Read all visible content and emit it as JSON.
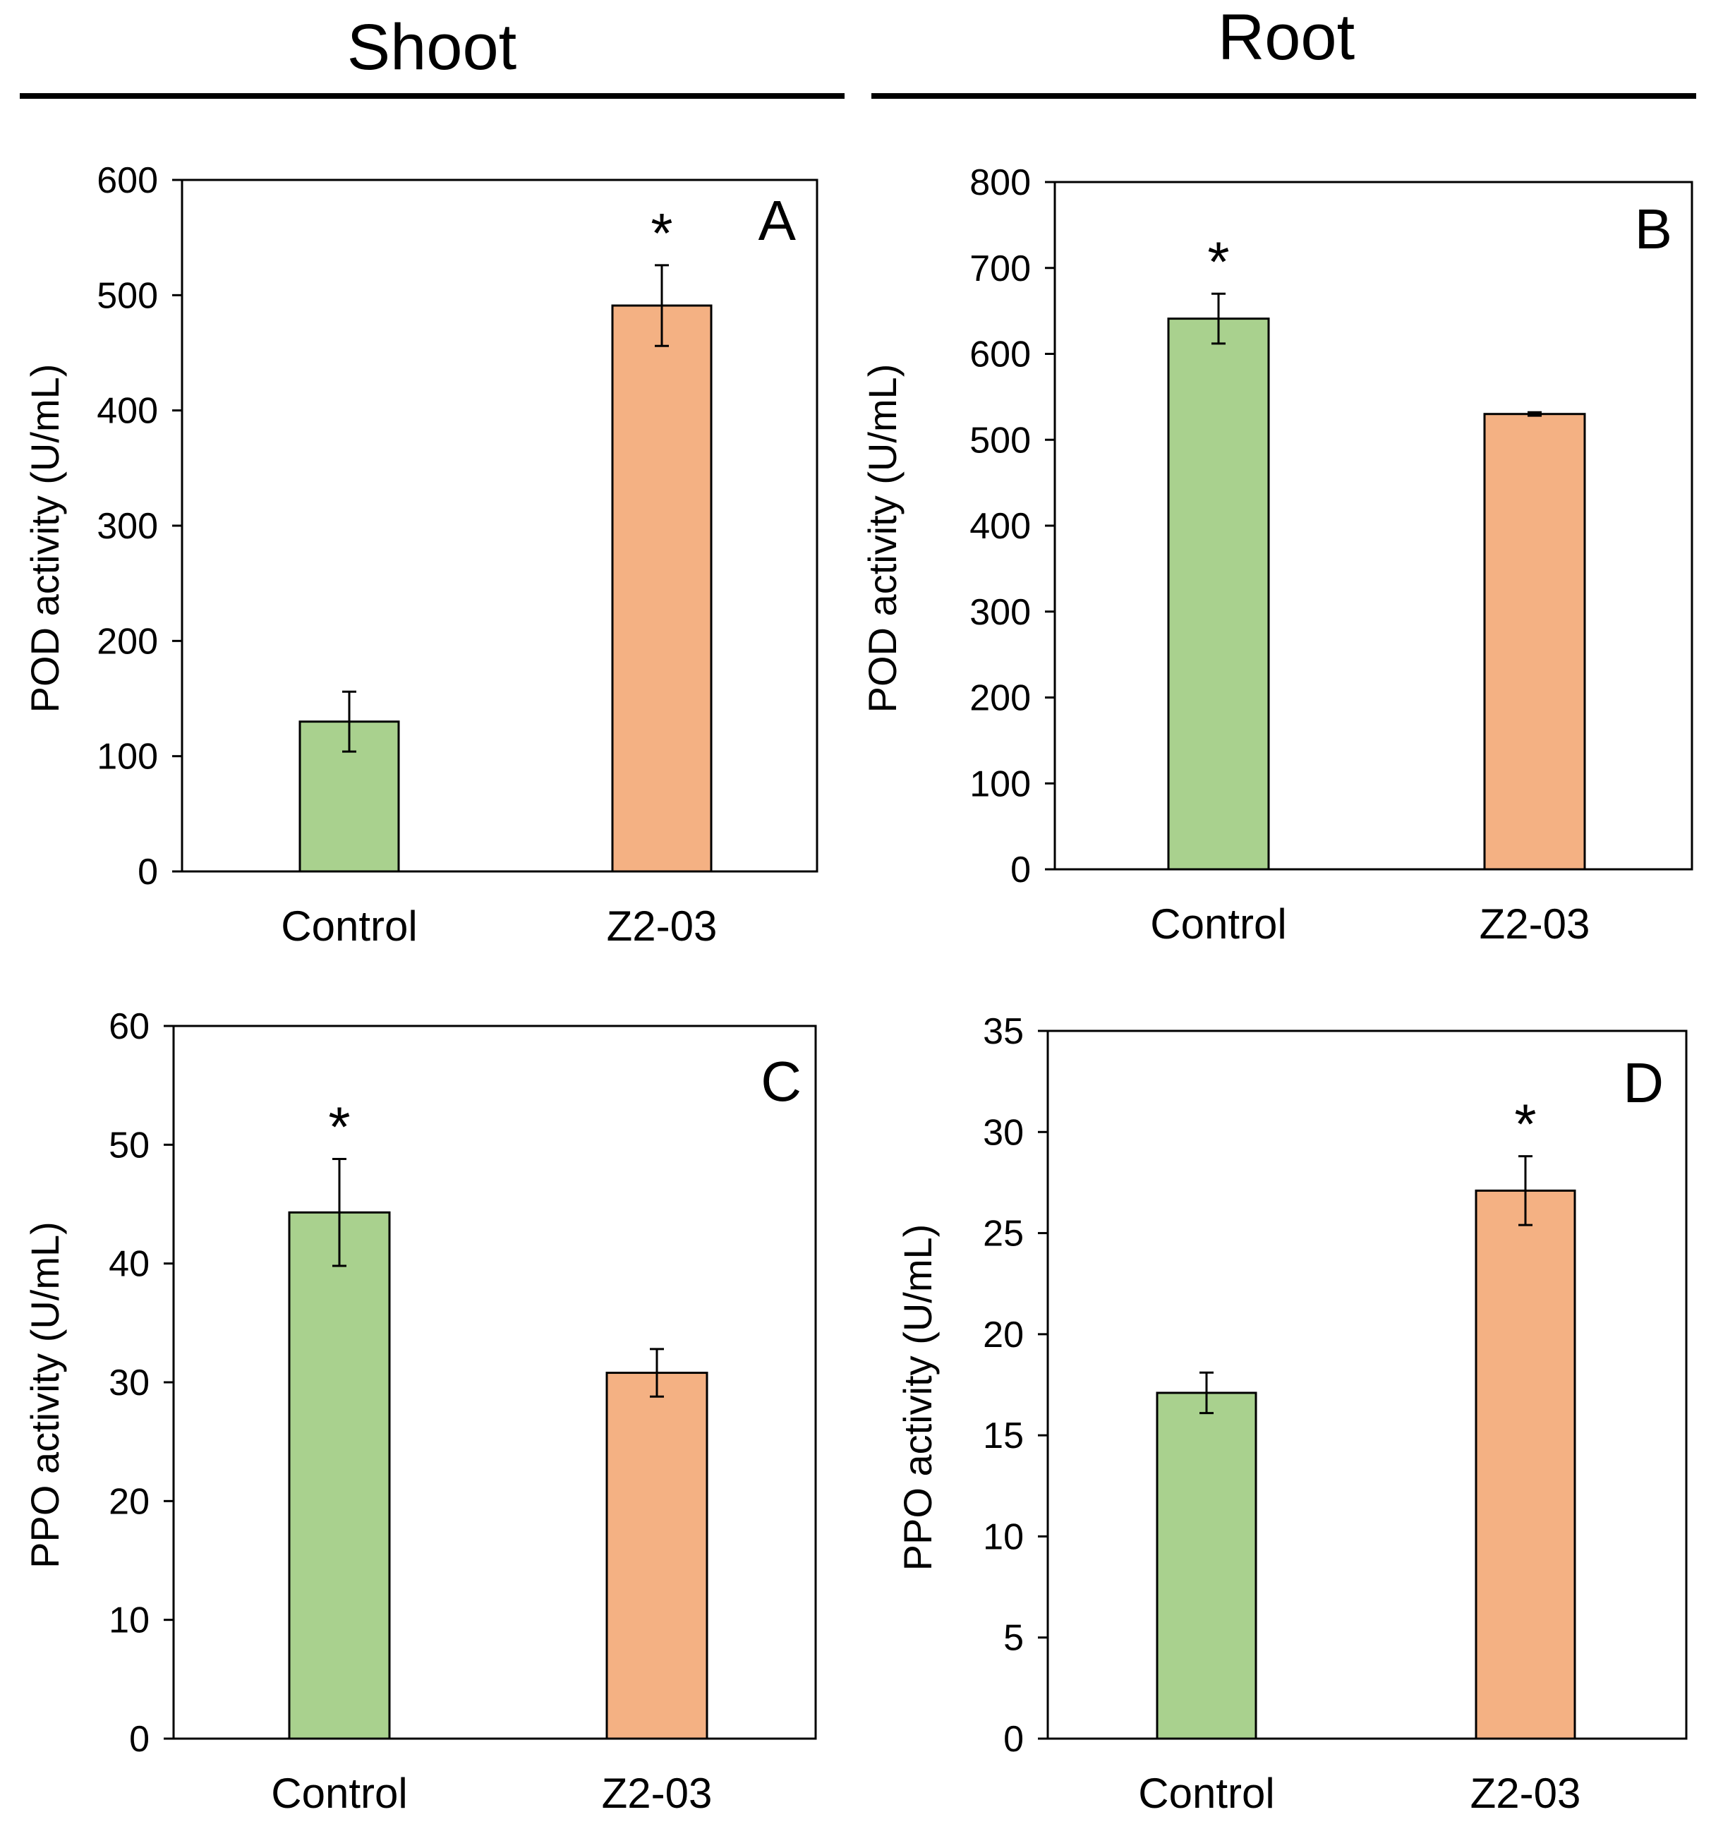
{
  "columns": {
    "shoot": "Shoot",
    "root": "Root"
  },
  "chart_data": [
    {
      "panel": "A",
      "type": "bar",
      "categories": [
        "Control",
        "Z2-03"
      ],
      "values": [
        130,
        491
      ],
      "errors": [
        26,
        35
      ],
      "significance": [
        "",
        "*"
      ],
      "colors": [
        "#a9d18e",
        "#f4b183"
      ],
      "ylabel": "POD activity (U/mL)",
      "ylim": [
        0,
        600
      ],
      "yticks": [
        0,
        100,
        200,
        300,
        400,
        500,
        600
      ]
    },
    {
      "panel": "B",
      "type": "bar",
      "categories": [
        "Control",
        "Z2-03"
      ],
      "values": [
        641,
        530
      ],
      "errors": [
        29,
        2
      ],
      "significance": [
        "*",
        ""
      ],
      "colors": [
        "#a9d18e",
        "#f4b183"
      ],
      "ylabel": "POD activity (U/mL)",
      "ylim": [
        0,
        800
      ],
      "yticks": [
        0,
        100,
        200,
        300,
        400,
        500,
        600,
        700,
        800
      ]
    },
    {
      "panel": "C",
      "type": "bar",
      "categories": [
        "Control",
        "Z2-03"
      ],
      "values": [
        44.3,
        30.8
      ],
      "errors": [
        4.5,
        2.0
      ],
      "significance": [
        "*",
        ""
      ],
      "colors": [
        "#a9d18e",
        "#f4b183"
      ],
      "ylabel": "PPO activity  (U/mL)",
      "ylim": [
        0,
        60
      ],
      "yticks": [
        0,
        10,
        20,
        30,
        40,
        50,
        60
      ]
    },
    {
      "panel": "D",
      "type": "bar",
      "categories": [
        "Control",
        "Z2-03"
      ],
      "values": [
        17.1,
        27.1
      ],
      "errors": [
        1.0,
        1.7
      ],
      "significance": [
        "",
        "*"
      ],
      "colors": [
        "#a9d18e",
        "#f4b183"
      ],
      "ylabel": "PPO activity  (U/mL)",
      "ylim": [
        0,
        35
      ],
      "yticks": [
        0,
        5,
        10,
        15,
        20,
        25,
        30,
        35
      ]
    }
  ]
}
